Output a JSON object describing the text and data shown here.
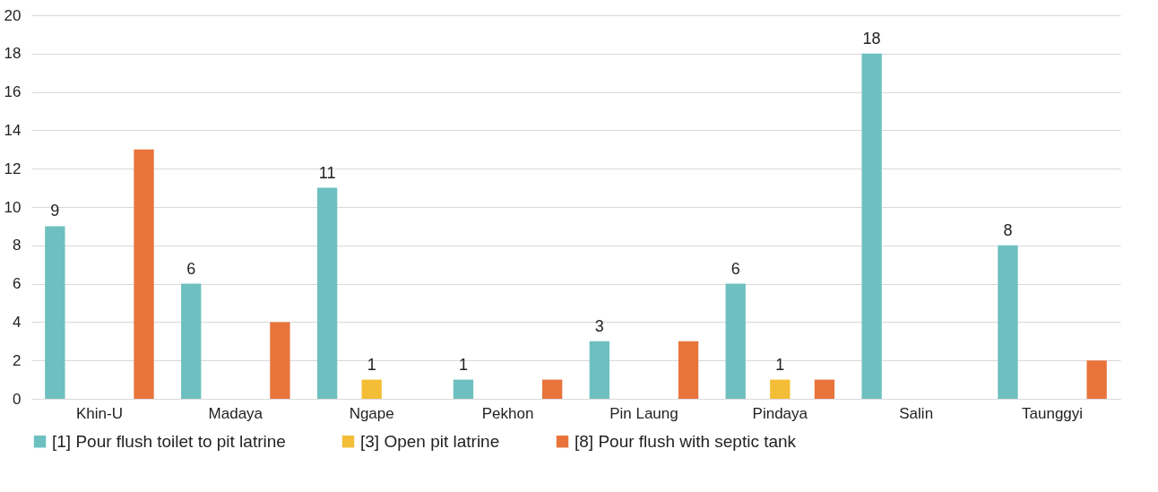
{
  "chart_data": {
    "type": "bar",
    "categories": [
      "Khin-U",
      "Madaya",
      "Ngape",
      "Pekhon",
      "Pin Laung",
      "Pindaya",
      "Salin",
      "Taunggyi"
    ],
    "series": [
      {
        "name": "[1] Pour flush toilet to pit latrine",
        "color": "#6dc0bf",
        "values": [
          9,
          6,
          11,
          1,
          3,
          6,
          18,
          8
        ],
        "value_labels": [
          "9",
          "6",
          "11",
          "1",
          "3",
          "6",
          "18",
          "8"
        ]
      },
      {
        "name": "[3] Open pit latrine",
        "color": "#f3bd36",
        "values": [
          null,
          null,
          1,
          null,
          null,
          1,
          null,
          null
        ],
        "value_labels": [
          null,
          null,
          "1",
          null,
          null,
          "1",
          null,
          null
        ]
      },
      {
        "name": "[8] Pour flush with septic tank",
        "color": "#e8743b",
        "values": [
          13,
          4,
          null,
          1,
          3,
          1,
          null,
          2
        ]
      }
    ],
    "ylim": [
      0,
      20
    ],
    "yticks": [
      0,
      2,
      4,
      6,
      8,
      10,
      12,
      14,
      16,
      18,
      20
    ],
    "grid": "y",
    "legend": "bottom"
  }
}
